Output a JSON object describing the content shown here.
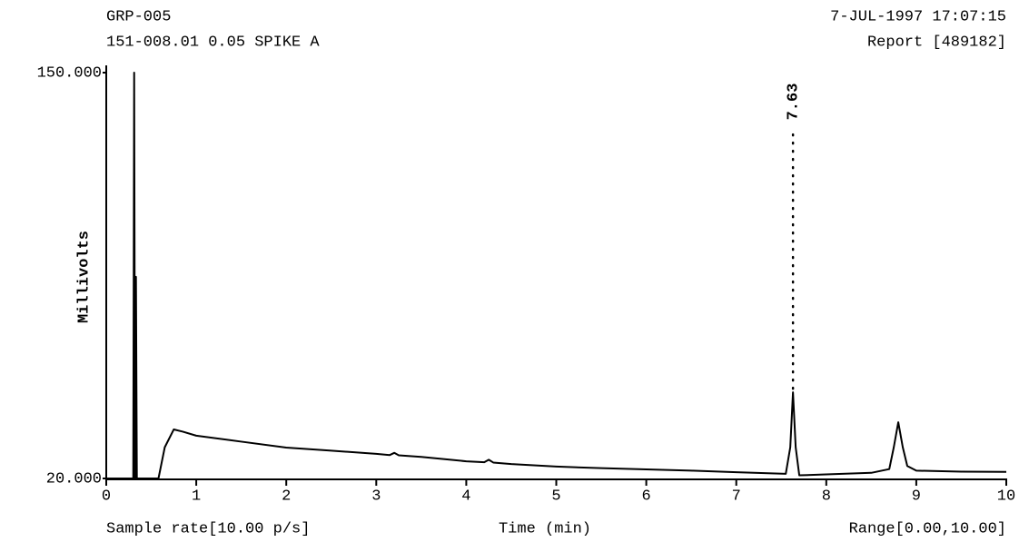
{
  "chart_data": {
    "type": "line",
    "header_left": [
      "GRP-005",
      "151-008.01 0.05 SPIKE A"
    ],
    "header_right": [
      "7-JUL-1997 17:07:15",
      "Report [489182]"
    ],
    "ylabel": "Millivolts",
    "xlabel": "Time (min)",
    "footer_left": "Sample rate[10.00 p/s]",
    "footer_right": "Range[0.00,10.00]",
    "color": "#000000",
    "x": [
      0,
      0.3,
      0.31,
      0.32,
      0.33,
      0.34,
      0.35,
      0.58,
      0.65,
      0.75,
      0.85,
      1,
      1.5,
      2,
      2.5,
      3,
      3.15,
      3.2,
      3.25,
      3.5,
      4,
      4.2,
      4.25,
      4.3,
      4.5,
      5,
      5.5,
      6,
      6.5,
      7,
      7.55,
      7.6,
      7.63,
      7.66,
      7.7,
      8,
      8.5,
      8.7,
      8.75,
      8.8,
      8.85,
      8.9,
      9,
      9.5,
      10
    ],
    "values": [
      20,
      20,
      150,
      20,
      84.6,
      20,
      20,
      20,
      30,
      35.7,
      35,
      33.7,
      31.8,
      29.9,
      28.9,
      27.9,
      27.5,
      28.2,
      27.4,
      26.9,
      25.5,
      25.2,
      26,
      25.1,
      24.6,
      23.8,
      23.3,
      22.9,
      22.5,
      22,
      21.5,
      30,
      47.6,
      30,
      21,
      21.3,
      21.8,
      23,
      30,
      38,
      30,
      24,
      22.5,
      22.2,
      22.1
    ],
    "annotations": [
      {
        "x": 7.63,
        "text": "7.63"
      }
    ],
    "xlim": [
      0,
      10
    ],
    "xticks": [
      0,
      1,
      2,
      3,
      4,
      5,
      6,
      7,
      8,
      9,
      10
    ],
    "ylim": [
      20,
      150
    ],
    "yticks": [
      {
        "value": 20,
        "label": "20.000"
      },
      {
        "value": 150,
        "label": "150.000"
      }
    ]
  }
}
